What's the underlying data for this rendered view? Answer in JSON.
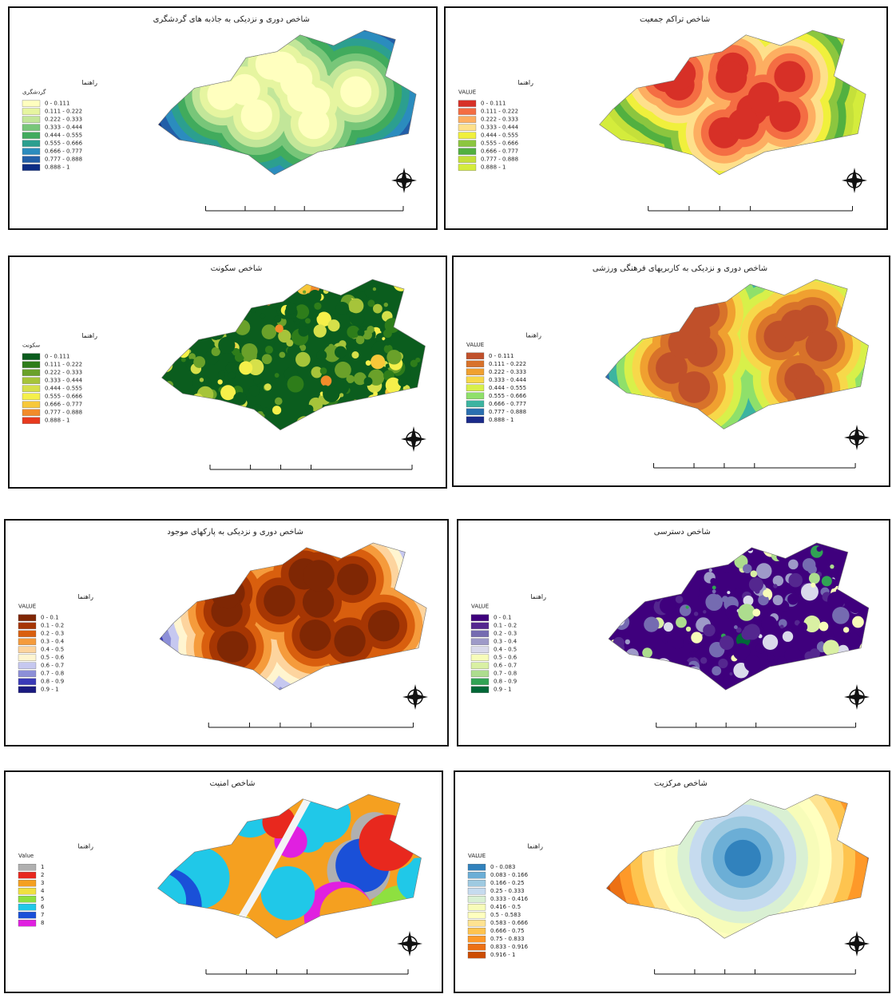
{
  "panels": [
    {
      "title": "شاخص دوری و نزدیکی به جاذبه های گردشگری",
      "legend_title": "راهنما",
      "field": "گردشگری",
      "legend": [
        {
          "label": "0 - 0.111",
          "color": "#ffffbf"
        },
        {
          "label": "0.111 - 0.222",
          "color": "#e6f5a0"
        },
        {
          "label": "0.222 - 0.333",
          "color": "#c2e699"
        },
        {
          "label": "0.333 - 0.444",
          "color": "#78c679"
        },
        {
          "label": "0.444 - 0.555",
          "color": "#41ab5d"
        },
        {
          "label": "0.555 - 0.666",
          "color": "#2c9f8f"
        },
        {
          "label": "0.666 - 0.777",
          "color": "#2b8cbe"
        },
        {
          "label": "0.777 - 0.888",
          "color": "#225ea8"
        },
        {
          "label": "0.888 - 1",
          "color": "#0c2c84"
        }
      ]
    },
    {
      "title": "شاخص تراکم جمعیت",
      "legend_title": "راهنما",
      "field": "VALUE",
      "legend": [
        {
          "label": "0 - 0.111",
          "color": "#d73027"
        },
        {
          "label": "0.111 - 0.222",
          "color": "#f46d43"
        },
        {
          "label": "0.222 - 0.333",
          "color": "#fdae61"
        },
        {
          "label": "0.333 - 0.444",
          "color": "#fee08b"
        },
        {
          "label": "0.444 - 0.555",
          "color": "#f0f03c"
        },
        {
          "label": "0.555 - 0.666",
          "color": "#8cc63f"
        },
        {
          "label": "0.666 - 0.777",
          "color": "#52b040"
        },
        {
          "label": "0.777 - 0.888",
          "color": "#c5e03a"
        },
        {
          "label": "0.888 - 1",
          "color": "#d4ec3c"
        }
      ]
    },
    {
      "title": "شاخص سکونت",
      "legend_title": "راهنما",
      "field": "سکونت",
      "legend": [
        {
          "label": "0 - 0.111",
          "color": "#0b5d1e"
        },
        {
          "label": "0.111 - 0.222",
          "color": "#2e7d1a"
        },
        {
          "label": "0.222 - 0.333",
          "color": "#6aa12a"
        },
        {
          "label": "0.333 - 0.444",
          "color": "#a6c43a"
        },
        {
          "label": "0.444 - 0.555",
          "color": "#d6e04a"
        },
        {
          "label": "0.555 - 0.666",
          "color": "#f5f04a"
        },
        {
          "label": "0.666 - 0.777",
          "color": "#f7c83a"
        },
        {
          "label": "0.777 - 0.888",
          "color": "#f28c2a"
        },
        {
          "label": "0.888 - 1",
          "color": "#e83a1e"
        }
      ]
    },
    {
      "title": "شاخص دوری و نزدیکی به کاربریهای فرهنگی ورزشی",
      "legend_title": "راهنما",
      "field": "VALUE",
      "legend": [
        {
          "label": "0 - 0.111",
          "color": "#c0502a"
        },
        {
          "label": "0.111 - 0.222",
          "color": "#d8722a"
        },
        {
          "label": "0.222 - 0.333",
          "color": "#f0a030"
        },
        {
          "label": "0.333 - 0.444",
          "color": "#f7d84a"
        },
        {
          "label": "0.444 - 0.555",
          "color": "#d8f04a"
        },
        {
          "label": "0.555 - 0.666",
          "color": "#8fe06a"
        },
        {
          "label": "0.666 - 0.777",
          "color": "#3cb4a0"
        },
        {
          "label": "0.777 - 0.888",
          "color": "#2a6fb0"
        },
        {
          "label": "0.888 - 1",
          "color": "#1a2a8a"
        }
      ]
    },
    {
      "title": "شاخص دوری و نزدیکی به پارکهای موجود",
      "legend_title": "راهنما",
      "field": "VALUE",
      "legend": [
        {
          "label": "0 - 0.1",
          "color": "#7f2704"
        },
        {
          "label": "0.1 - 0.2",
          "color": "#a63603"
        },
        {
          "label": "0.2 - 0.3",
          "color": "#d95f0e"
        },
        {
          "label": "0.3 - 0.4",
          "color": "#f59b3c"
        },
        {
          "label": "0.4 - 0.5",
          "color": "#fdd49e"
        },
        {
          "label": "0.5 - 0.6",
          "color": "#fff5d0"
        },
        {
          "label": "0.6 - 0.7",
          "color": "#c6c8f0"
        },
        {
          "label": "0.7 - 0.8",
          "color": "#8c8fd8"
        },
        {
          "label": "0.8 - 0.9",
          "color": "#3a3ab8"
        },
        {
          "label": "0.9 - 1",
          "color": "#1a1a80"
        }
      ]
    },
    {
      "title": "شاخص دسترسی",
      "legend_title": "راهنما",
      "field": "VALUE",
      "legend": [
        {
          "label": "0 - 0.1",
          "color": "#3f007d"
        },
        {
          "label": "0.1 - 0.2",
          "color": "#54278f"
        },
        {
          "label": "0.2 - 0.3",
          "color": "#756bb1"
        },
        {
          "label": "0.3 - 0.4",
          "color": "#9e9ac8"
        },
        {
          "label": "0.4 - 0.5",
          "color": "#dadaeb"
        },
        {
          "label": "0.5 - 0.6",
          "color": "#f7fcb9"
        },
        {
          "label": "0.6 - 0.7",
          "color": "#d9f0a3"
        },
        {
          "label": "0.7 - 0.8",
          "color": "#addd8e"
        },
        {
          "label": "0.8 - 0.9",
          "color": "#31a354"
        },
        {
          "label": "0.9 - 1",
          "color": "#006837"
        }
      ]
    },
    {
      "title": "شاخص امنیت",
      "legend_title": "راهنما",
      "field": "Value",
      "legend": [
        {
          "label": "1",
          "color": "#b0b0b0"
        },
        {
          "label": "2",
          "color": "#e8281e"
        },
        {
          "label": "3",
          "color": "#f5a020"
        },
        {
          "label": "4",
          "color": "#f0e040"
        },
        {
          "label": "5",
          "color": "#8ee040"
        },
        {
          "label": "6",
          "color": "#20c8e8"
        },
        {
          "label": "7",
          "color": "#1a50d8"
        },
        {
          "label": "8",
          "color": "#e020e0"
        }
      ]
    },
    {
      "title": "شاخص مرکزیت",
      "legend_title": "راهنما",
      "field": "VALUE",
      "legend": [
        {
          "label": "0 - 0.083",
          "color": "#3182bd"
        },
        {
          "label": "0.083 - 0.166",
          "color": "#6baed6"
        },
        {
          "label": "0.166 - 0.25",
          "color": "#9ecae1"
        },
        {
          "label": "0.25 - 0.333",
          "color": "#c6dbef"
        },
        {
          "label": "0.333 - 0.416",
          "color": "#d9f0d3"
        },
        {
          "label": "0.416 - 0.5",
          "color": "#f7fcb9"
        },
        {
          "label": "0.5 - 0.583",
          "color": "#ffffbf"
        },
        {
          "label": "0.583 - 0.666",
          "color": "#fee391"
        },
        {
          "label": "0.666 - 0.75",
          "color": "#fec44f"
        },
        {
          "label": "0.75 - 0.833",
          "color": "#fe9929"
        },
        {
          "label": "0.833 - 0.916",
          "color": "#ec7014"
        },
        {
          "label": "0.916 - 1",
          "color": "#cc4c02"
        }
      ]
    }
  ]
}
